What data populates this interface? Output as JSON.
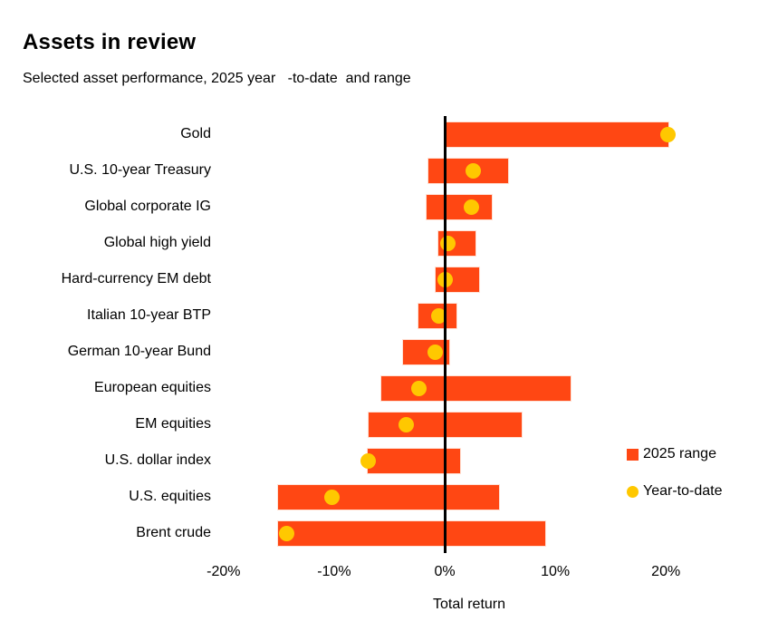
{
  "title": "Assets in review",
  "subtitle": "Selected asset performance, 2025 year   -to-date  and range",
  "colors": {
    "range_bar": "#FF4713",
    "ytd_dot": "#FFC800",
    "zero_line": "#000000",
    "text": "#000000",
    "background": "#FFFFFF"
  },
  "legend": [
    {
      "label": "2025 range",
      "marker": "square",
      "color": "#FF4713"
    },
    {
      "label": "Year-to-date",
      "marker": "circle",
      "color": "#FFC800"
    }
  ],
  "chart_data": {
    "type": "bar",
    "subtype": "horizontal-range-bar-with-ytd-dot",
    "title": "Assets in review",
    "subtitle": "Selected asset performance, 2025 year-to-date and range",
    "xlabel": "Total return",
    "ylabel": "",
    "xlim": [
      -24,
      28
    ],
    "grid": false,
    "legend_position": "right-middle",
    "x_ticks": [
      "-20%",
      "-10%",
      "0%",
      "10%",
      "20%"
    ],
    "x_tick_values": [
      -20,
      -10,
      0,
      10,
      20
    ],
    "categories": [
      "Gold",
      "U.S. 10-year Treasury",
      "Global corporate IG",
      "Global high yield",
      "Hard-currency EM debt",
      "Italian 10-year BTP",
      "German 10-year Bund",
      "European equities",
      "EM equities",
      "U.S. dollar index",
      "U.S. equities",
      "Brent crude"
    ],
    "series": [
      {
        "name": "2025 range",
        "type": "range",
        "unit": "%",
        "low": [
          0.0,
          -1.5,
          -1.6,
          -0.6,
          -0.8,
          -2.4,
          -3.8,
          -5.7,
          -6.9,
          -7.0,
          -15.1,
          -15.1
        ],
        "high": [
          20.2,
          5.7,
          4.3,
          2.8,
          3.1,
          1.1,
          0.4,
          11.4,
          7.0,
          1.4,
          4.9,
          9.1
        ]
      },
      {
        "name": "Year-to-date",
        "type": "point",
        "unit": "%",
        "values": [
          20.2,
          2.6,
          2.4,
          0.3,
          0.0,
          -0.5,
          -0.9,
          -2.3,
          -3.5,
          -6.9,
          -10.2,
          -14.3
        ]
      }
    ]
  }
}
